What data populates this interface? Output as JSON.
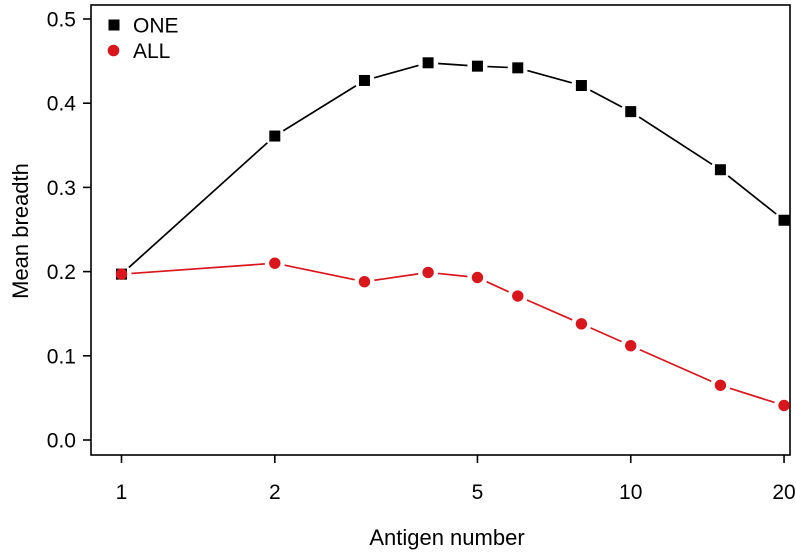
{
  "figure": {
    "background": "#ffffff",
    "frame_color": "#000000",
    "text_color": "#000000"
  },
  "chart_data": {
    "type": "line",
    "title": "",
    "xlabel": "Antigen number",
    "ylabel": "Mean breadth",
    "x_scale": "log10",
    "xlim": [
      1,
      20
    ],
    "ylim": [
      0.0,
      0.5
    ],
    "grid": false,
    "legend_position": "top-left-inside",
    "x": [
      1,
      2,
      3,
      4,
      5,
      6,
      8,
      10,
      15,
      20
    ],
    "x_ticks": [
      1,
      2,
      5,
      10,
      20
    ],
    "x_tick_labels": [
      "1",
      "2",
      "5",
      "10",
      "20"
    ],
    "y_ticks": [
      0.0,
      0.1,
      0.2,
      0.3,
      0.4,
      0.5
    ],
    "y_tick_labels": [
      "0.0",
      "0.1",
      "0.2",
      "0.3",
      "0.4",
      "0.5"
    ],
    "series": [
      {
        "name": "ONE",
        "marker": "square",
        "color": "#000000",
        "values": [
          0.197,
          0.361,
          0.427,
          0.448,
          0.444,
          0.442,
          0.421,
          0.39,
          0.321,
          0.261
        ]
      },
      {
        "name": "ALL",
        "marker": "circle",
        "color": "#d8161c",
        "values": [
          0.197,
          0.21,
          0.188,
          0.199,
          0.193,
          0.171,
          0.138,
          0.112,
          0.065,
          0.041
        ]
      }
    ]
  }
}
